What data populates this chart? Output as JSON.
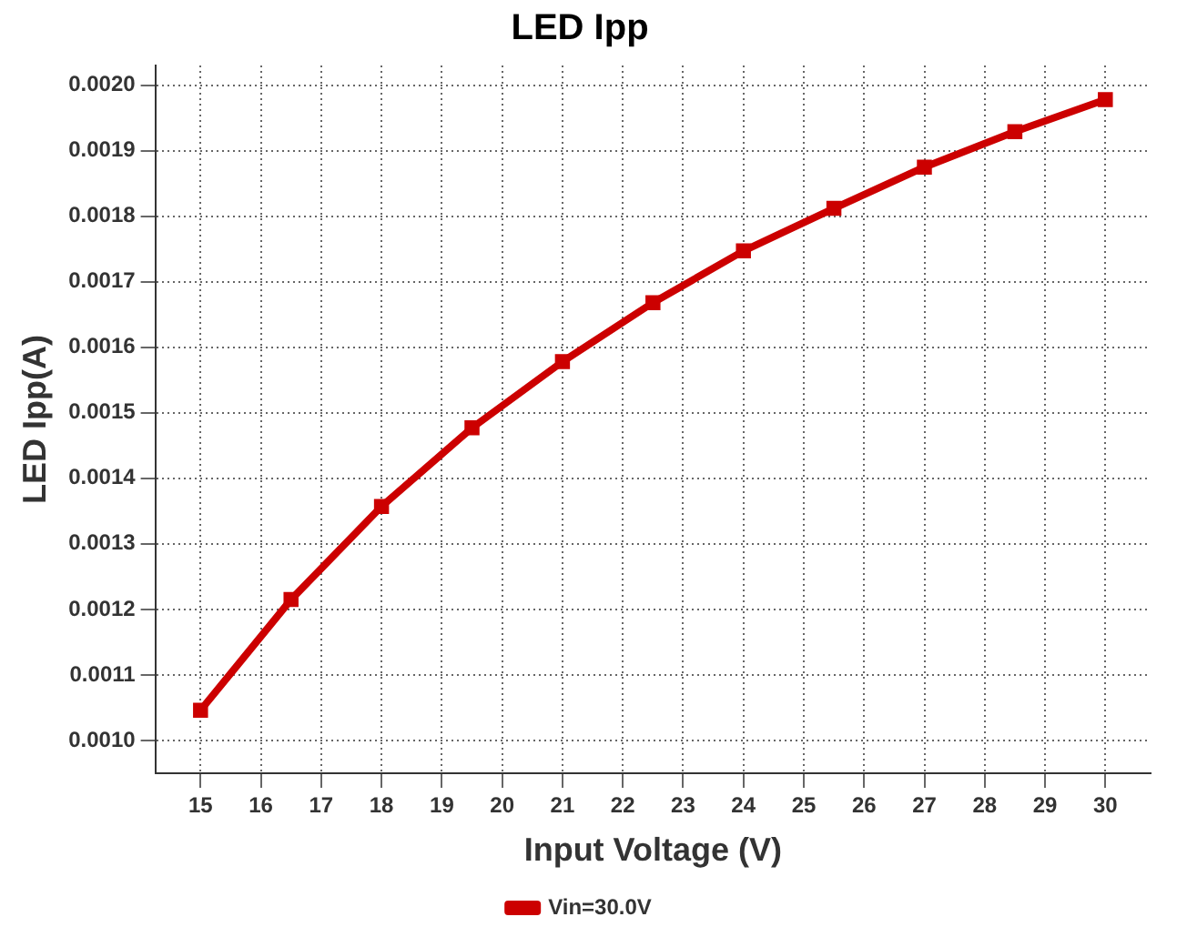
{
  "chart_data": {
    "type": "line",
    "title": "LED Ipp",
    "xlabel": "Input Voltage (V)",
    "ylabel": "LED Ipp(A)",
    "x": [
      15,
      16.5,
      18,
      19.5,
      21,
      22.5,
      24,
      25.5,
      27,
      28.5,
      30
    ],
    "series": [
      {
        "name": "Vin=30.0V",
        "color": "#cc0000",
        "values": [
          0.001046,
          0.001215,
          0.001357,
          0.001477,
          0.001578,
          0.001668,
          0.001747,
          0.001812,
          0.001875,
          0.001929,
          0.001978
        ]
      }
    ],
    "xlim": [
      14.25,
      30.75
    ],
    "xticks": [
      15,
      16,
      17,
      18,
      19,
      20,
      21,
      22,
      23,
      24,
      25,
      26,
      27,
      28,
      29,
      30
    ],
    "ylim": [
      0.00095,
      0.00203
    ],
    "yticks": [
      {
        "value": 0.001,
        "label": "0.0010"
      },
      {
        "value": 0.0011,
        "label": "0.0011"
      },
      {
        "value": 0.0012,
        "label": "0.0012"
      },
      {
        "value": 0.0013,
        "label": "0.0013"
      },
      {
        "value": 0.0014,
        "label": "0.0014"
      },
      {
        "value": 0.0015,
        "label": "0.0015"
      },
      {
        "value": 0.0016,
        "label": "0.0016"
      },
      {
        "value": 0.0017,
        "label": "0.0017"
      },
      {
        "value": 0.0018,
        "label": "0.0018"
      },
      {
        "value": 0.0019,
        "label": "0.0019"
      },
      {
        "value": 0.002,
        "label": "0.0020"
      }
    ],
    "grid": true,
    "legend": "bottom",
    "marker": "square",
    "line_style": "solid"
  }
}
